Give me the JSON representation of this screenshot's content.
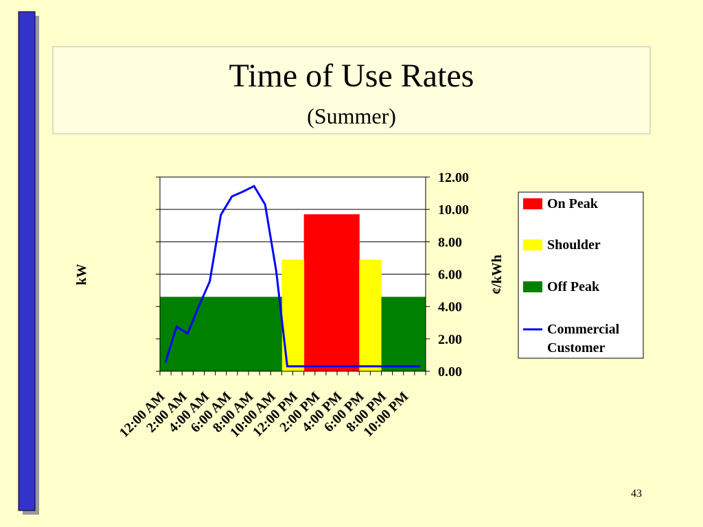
{
  "chart_data": {
    "type": "bar_line",
    "title": "Time of Use Rates",
    "subtitle": "(Summer)",
    "page_number": "43",
    "ylabel": "kW",
    "y2label": "¢/kWh",
    "categories": [
      "12:00 AM",
      null,
      "2:00 AM",
      null,
      "4:00 AM",
      null,
      "6:00 AM",
      null,
      "8:00 AM",
      null,
      "10:00 AM",
      null,
      "12:00 PM",
      null,
      "2:00 PM",
      null,
      "4:00 PM",
      null,
      "6:00 PM",
      null,
      "8:00 PM",
      null,
      "10:00 PM",
      null
    ],
    "ylim": [
      0,
      12
    ],
    "y2lim": [
      0,
      12
    ],
    "y2ticks": [
      {
        "value": 0,
        "label": "0.00"
      },
      {
        "value": 2,
        "label": "2.00"
      },
      {
        "value": 4,
        "label": "4.00"
      },
      {
        "value": 6,
        "label": "6.00"
      },
      {
        "value": 8,
        "label": "8.00"
      },
      {
        "value": 10,
        "label": "10.00"
      },
      {
        "value": 12,
        "label": "12.00"
      }
    ],
    "grid": true,
    "series": [
      {
        "name": "On Peak",
        "color": "#ff0000",
        "kind": "bar",
        "axis": "y2",
        "values": [
          null,
          null,
          null,
          null,
          null,
          null,
          null,
          null,
          null,
          null,
          null,
          null,
          null,
          9.7,
          9.7,
          9.7,
          9.7,
          9.7,
          null,
          null,
          null,
          null,
          null,
          null
        ]
      },
      {
        "name": "Shoulder",
        "color": "#ffff00",
        "kind": "bar",
        "axis": "y2",
        "values": [
          null,
          null,
          null,
          null,
          null,
          null,
          null,
          null,
          null,
          null,
          null,
          6.9,
          6.9,
          null,
          null,
          null,
          null,
          null,
          6.9,
          6.9,
          null,
          null,
          null,
          null
        ]
      },
      {
        "name": "Off Peak",
        "color": "#008000",
        "kind": "bar",
        "axis": "y2",
        "values": [
          4.6,
          4.6,
          4.6,
          4.6,
          4.6,
          4.6,
          4.6,
          4.6,
          4.6,
          4.6,
          4.6,
          null,
          null,
          null,
          null,
          null,
          null,
          null,
          null,
          null,
          4.6,
          4.6,
          4.6,
          4.6
        ]
      },
      {
        "name": "Commercial Customer",
        "color": "#0000ff",
        "kind": "line",
        "values": [
          0.55,
          2.75,
          2.33,
          4.0,
          5.55,
          9.66,
          10.8,
          11.1,
          11.44,
          10.3,
          6.2,
          0.3,
          0.3,
          0.3,
          0.3,
          0.3,
          0.3,
          0.3,
          0.3,
          0.3,
          0.3,
          0.3,
          0.3,
          0.3
        ]
      }
    ]
  }
}
